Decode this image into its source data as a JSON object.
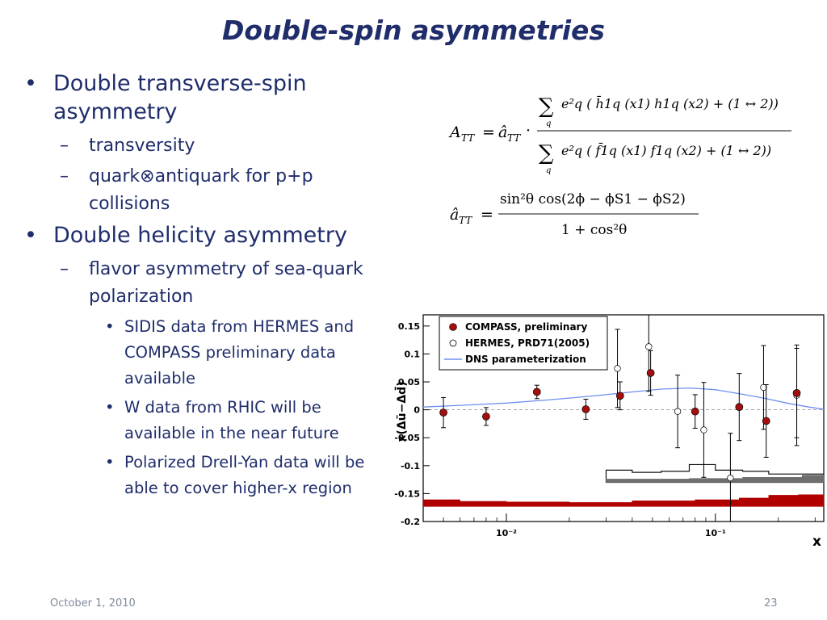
{
  "slide": {
    "title": "Double-spin asymmetries",
    "bullets": [
      {
        "text": "Double transverse-spin asymmetry",
        "children": [
          {
            "text": "transversity"
          },
          {
            "text": "quark⊗antiquark for p+p collisions"
          }
        ]
      },
      {
        "text": "Double helicity asymmetry",
        "children": [
          {
            "text": "flavor asymmetry of sea-quark polarization",
            "children": [
              {
                "text": "SIDIS data from HERMES and COMPASS preliminary data available"
              },
              {
                "text": "W data from RHIC will be available in the near future"
              },
              {
                "text": "Polarized Drell-Yan data will be able to cover higher-x region"
              }
            ]
          }
        ]
      }
    ],
    "footer": {
      "date": "October 1, 2010",
      "page": "23"
    }
  },
  "formula": {
    "att": "A",
    "att_sub": "TT",
    "hat_a": "â",
    "num_expr": "e²q ( h̄1q (x1) h1q (x2) + (1 ↔ 2))",
    "den_expr": "e²q ( f̄1q (x1) f1q (x2) + (1 ↔ 2))",
    "sum_index": "q",
    "hat_num": "sin²θ cos(2ϕ − ϕS1 − ϕS2)",
    "hat_den": "1 + cos²θ"
  },
  "chart_data": {
    "type": "scatter",
    "ylabel": "x(Δū−Δd̄)",
    "xlabel": "x",
    "xscale": "log",
    "xlim": [
      0.004,
      0.33
    ],
    "ylim": [
      -0.2,
      0.17
    ],
    "yticks": [
      "0.15",
      "0.1",
      "0.05",
      "0",
      "-0.05",
      "-0.1",
      "-0.15",
      "-0.2"
    ],
    "xticks": [
      "10⁻²",
      "10⁻¹"
    ],
    "legend": {
      "placement": "top-left",
      "entries": [
        "COMPASS, preliminary",
        "HERMES, PRD71(2005)",
        "DNS parameterization"
      ]
    },
    "series": [
      {
        "name": "COMPASS, preliminary",
        "points": [
          {
            "x": 0.005,
            "y": -0.005,
            "err": 0.027
          },
          {
            "x": 0.008,
            "y": -0.012,
            "err": 0.016
          },
          {
            "x": 0.014,
            "y": 0.032,
            "err": 0.012
          },
          {
            "x": 0.024,
            "y": 0.001,
            "err": 0.018
          },
          {
            "x": 0.035,
            "y": 0.025,
            "err": 0.025
          },
          {
            "x": 0.049,
            "y": 0.066,
            "err": 0.04
          },
          {
            "x": 0.08,
            "y": -0.003,
            "err": 0.03
          },
          {
            "x": 0.13,
            "y": 0.005,
            "err": 0.06
          },
          {
            "x": 0.175,
            "y": -0.02,
            "err": 0.065
          },
          {
            "x": 0.245,
            "y": 0.03,
            "err": 0.08
          }
        ]
      },
      {
        "name": "HERMES, PRD71(2005)",
        "points": [
          {
            "x": 0.034,
            "y": 0.074,
            "err": 0.07
          },
          {
            "x": 0.048,
            "y": 0.113,
            "err": 0.08
          },
          {
            "x": 0.066,
            "y": -0.003,
            "err": 0.065
          },
          {
            "x": 0.088,
            "y": -0.036,
            "err": 0.085
          },
          {
            "x": 0.118,
            "y": -0.122,
            "err": 0.08
          },
          {
            "x": 0.17,
            "y": 0.04,
            "err": 0.075
          },
          {
            "x": 0.245,
            "y": 0.026,
            "err": 0.09
          }
        ]
      },
      {
        "name": "DNS parameterization",
        "points": [
          {
            "x": 0.004,
            "y": 0.005
          },
          {
            "x": 0.006,
            "y": 0.008
          },
          {
            "x": 0.01,
            "y": 0.012
          },
          {
            "x": 0.015,
            "y": 0.017
          },
          {
            "x": 0.02,
            "y": 0.021
          },
          {
            "x": 0.03,
            "y": 0.027
          },
          {
            "x": 0.04,
            "y": 0.032
          },
          {
            "x": 0.055,
            "y": 0.037
          },
          {
            "x": 0.075,
            "y": 0.039
          },
          {
            "x": 0.1,
            "y": 0.036
          },
          {
            "x": 0.13,
            "y": 0.029
          },
          {
            "x": 0.17,
            "y": 0.021
          },
          {
            "x": 0.22,
            "y": 0.012
          },
          {
            "x": 0.28,
            "y": 0.005
          },
          {
            "x": 0.33,
            "y": 0.001
          }
        ]
      }
    ],
    "bands": [
      {
        "kind": "outline",
        "color": "#111111",
        "bins": [
          [
            0.03,
            -0.108
          ],
          [
            0.04,
            -0.112
          ],
          [
            0.055,
            -0.11
          ],
          [
            0.075,
            -0.098
          ],
          [
            0.1,
            -0.108
          ],
          [
            0.135,
            -0.11
          ],
          [
            0.18,
            -0.115
          ]
        ],
        "xmax": 0.33,
        "bottom": -0.13
      },
      {
        "kind": "filled",
        "color": "#6e6e6e",
        "bins": [
          [
            0.03,
            -0.124
          ],
          [
            0.075,
            -0.123
          ],
          [
            0.135,
            -0.121
          ],
          [
            0.26,
            -0.117
          ]
        ],
        "xmax": 0.33,
        "bottom": -0.13
      },
      {
        "kind": "filled",
        "color": "#b00000",
        "bins": [
          [
            0.004,
            -0.161
          ],
          [
            0.006,
            -0.164
          ],
          [
            0.01,
            -0.165
          ],
          [
            0.02,
            -0.166
          ],
          [
            0.04,
            -0.163
          ],
          [
            0.08,
            -0.161
          ],
          [
            0.13,
            -0.158
          ],
          [
            0.18,
            -0.153
          ],
          [
            0.25,
            -0.152
          ]
        ],
        "xmax": 0.33,
        "bottom": -0.173
      }
    ],
    "colors": {
      "compass": "#a50e0e",
      "hermes": "#ffffff",
      "dns": "#6f8ff0"
    }
  }
}
